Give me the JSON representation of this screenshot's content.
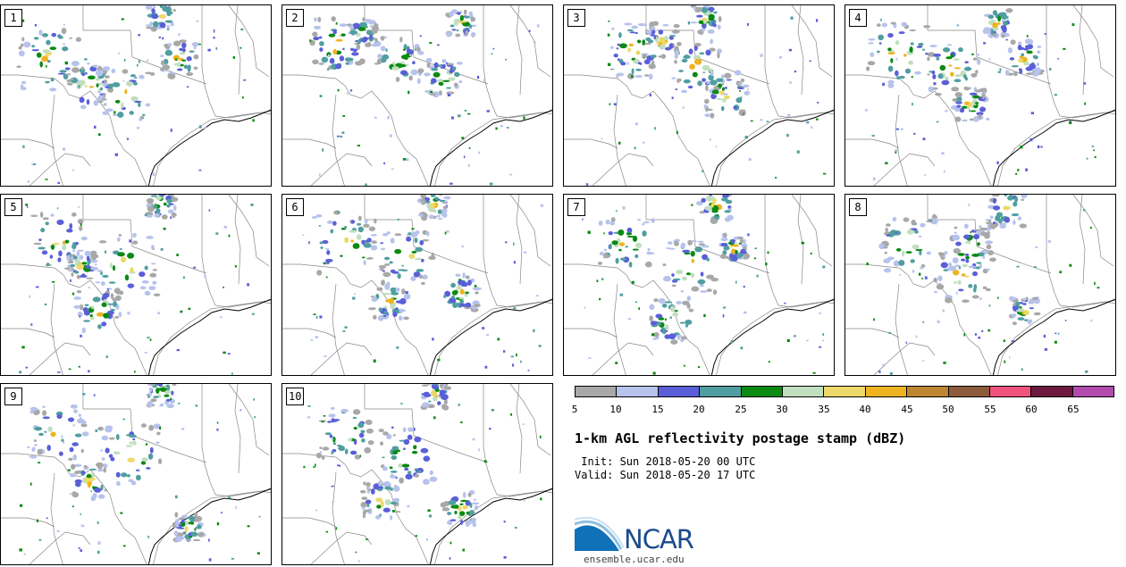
{
  "panels": [
    {
      "label": "1"
    },
    {
      "label": "2"
    },
    {
      "label": "3"
    },
    {
      "label": "4"
    },
    {
      "label": "5"
    },
    {
      "label": "6"
    },
    {
      "label": "7"
    },
    {
      "label": "8"
    },
    {
      "label": "9"
    },
    {
      "label": "10"
    }
  ],
  "colorbar": {
    "colors": [
      "#a8a8a8",
      "#b7c3ec",
      "#5a5fd8",
      "#509ea0",
      "#0a8a12",
      "#c0dfbf",
      "#ecd96a",
      "#eeb420",
      "#bd8631",
      "#8d5c3d",
      "#f0537d",
      "#6c1a3e",
      "#b24bad"
    ],
    "tick_labels": [
      "5",
      "10",
      "15",
      "20",
      "25",
      "30",
      "35",
      "40",
      "45",
      "50",
      "55",
      "60",
      "65"
    ]
  },
  "title": "1-km AGL reflectivity postage stamp (dBZ)",
  "init_label": " Init: Sun 2018-05-20 00 UTC",
  "valid_label": "Valid: Sun 2018-05-20 17 UTC",
  "logo": {
    "text": "NCAR",
    "url": "ensemble.ucar.edu"
  }
}
